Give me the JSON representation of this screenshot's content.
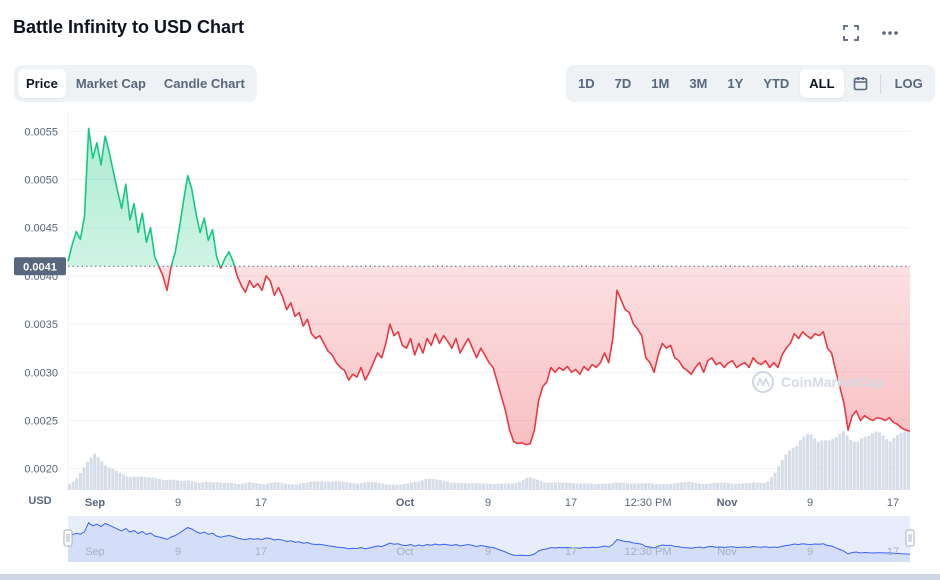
{
  "header": {
    "title": "Battle Infinity to USD Chart",
    "fullscreen_icon": "fullscreen-icon",
    "more_icon": "more-dots-icon"
  },
  "tabs_left": [
    {
      "label": "Price",
      "active": true
    },
    {
      "label": "Market Cap",
      "active": false
    },
    {
      "label": "Candle Chart",
      "active": false
    }
  ],
  "tabs_right": [
    {
      "label": "1D",
      "active": false
    },
    {
      "label": "7D",
      "active": false
    },
    {
      "label": "1M",
      "active": false
    },
    {
      "label": "3M",
      "active": false
    },
    {
      "label": "1Y",
      "active": false
    },
    {
      "label": "YTD",
      "active": false
    },
    {
      "label": "ALL",
      "active": true
    }
  ],
  "calendar_icon": "calendar-icon",
  "log_label": "LOG",
  "colors": {
    "up": "#16c784",
    "down": "#ea3943",
    "navigator_line": "#3861fb",
    "text_muted": "#58667e",
    "badge_bg": "#58667e"
  },
  "chart_data": {
    "type": "line",
    "unit_label": "USD",
    "ylim": [
      0.0018,
      0.0057
    ],
    "yticks": [
      "0.0055",
      "0.0050",
      "0.0045",
      "0.0040",
      "0.0035",
      "0.0030",
      "0.0025",
      "0.0020"
    ],
    "ytick_values": [
      0.0055,
      0.005,
      0.0045,
      0.004,
      0.0035,
      0.003,
      0.0025,
      0.002
    ],
    "reference_value": 0.0041,
    "reference_label": "0.0041",
    "xticks": [
      "Sep",
      "9",
      "17",
      "Oct",
      "9",
      "17",
      "12:30 PM",
      "Nov",
      "9",
      "17"
    ],
    "bold_xticks": [
      "Sep",
      "Oct",
      "Nov"
    ],
    "watermark": "CoinMarketCap",
    "series": [
      {
        "values": [
          0.00415,
          0.00432,
          0.00446,
          0.00438,
          0.00462,
          0.00553,
          0.00522,
          0.00538,
          0.00515,
          0.00545,
          0.00528,
          0.00508,
          0.00488,
          0.0047,
          0.00495,
          0.00458,
          0.00475,
          0.00445,
          0.00465,
          0.00435,
          0.0045,
          0.0042,
          0.0041,
          0.004,
          0.00385,
          0.0041,
          0.00425,
          0.0045,
          0.00478,
          0.00504,
          0.0049,
          0.00465,
          0.00445,
          0.0046,
          0.00437,
          0.00448,
          0.0042,
          0.00408,
          0.00418,
          0.00425,
          0.00415,
          0.004,
          0.0039,
          0.00383,
          0.00395,
          0.00388,
          0.00392,
          0.00385,
          0.004,
          0.00395,
          0.0038,
          0.00388,
          0.00378,
          0.00365,
          0.00372,
          0.00358,
          0.00362,
          0.00348,
          0.00355,
          0.0034,
          0.00335,
          0.00338,
          0.0033,
          0.00322,
          0.00318,
          0.0031,
          0.00305,
          0.00302,
          0.00292,
          0.00298,
          0.00295,
          0.00305,
          0.00292,
          0.003,
          0.0031,
          0.0032,
          0.00315,
          0.0033,
          0.0035,
          0.00338,
          0.00342,
          0.00328,
          0.00325,
          0.00335,
          0.00318,
          0.0033,
          0.0032,
          0.00335,
          0.00328,
          0.0034,
          0.0033,
          0.00338,
          0.00332,
          0.00325,
          0.00335,
          0.0032,
          0.00328,
          0.00335,
          0.00325,
          0.00315,
          0.00325,
          0.00318,
          0.0031,
          0.00305,
          0.0029,
          0.00275,
          0.0026,
          0.0024,
          0.00228,
          0.00226,
          0.00227,
          0.00225,
          0.00226,
          0.0024,
          0.0027,
          0.00285,
          0.0029,
          0.00305,
          0.003,
          0.00305,
          0.00302,
          0.00306,
          0.003,
          0.00303,
          0.00298,
          0.00306,
          0.00302,
          0.00308,
          0.00305,
          0.0031,
          0.0032,
          0.0031,
          0.00335,
          0.00385,
          0.00375,
          0.00365,
          0.00362,
          0.0035,
          0.00345,
          0.00338,
          0.00315,
          0.0031,
          0.003,
          0.00318,
          0.0033,
          0.00325,
          0.00328,
          0.00315,
          0.00312,
          0.00305,
          0.00302,
          0.00298,
          0.00305,
          0.0031,
          0.003,
          0.00312,
          0.00315,
          0.00308,
          0.0031,
          0.00305,
          0.0031,
          0.00312,
          0.00305,
          0.00308,
          0.0031,
          0.00305,
          0.00315,
          0.0031,
          0.00308,
          0.00312,
          0.00305,
          0.0031,
          0.00305,
          0.00318,
          0.00325,
          0.0033,
          0.0034,
          0.00335,
          0.00342,
          0.00338,
          0.00335,
          0.0034,
          0.00338,
          0.00342,
          0.00325,
          0.0032,
          0.00302,
          0.00285,
          0.00268,
          0.0024,
          0.00255,
          0.0026,
          0.0025,
          0.00255,
          0.00252,
          0.0025,
          0.00253,
          0.00252,
          0.0025,
          0.00253,
          0.00248,
          0.00246,
          0.00242,
          0.0024,
          0.00239
        ]
      }
    ],
    "volume_profile": [
      0.1,
      0.25,
      0.45,
      0.62,
      0.5,
      0.38,
      0.28,
      0.22,
      0.26,
      0.22,
      0.2,
      0.18,
      0.2,
      0.15,
      0.16,
      0.14,
      0.15,
      0.13,
      0.12,
      0.14,
      0.1,
      0.13,
      0.12,
      0.11,
      0.13,
      0.12,
      0.1,
      0.11,
      0.13,
      0.15,
      0.16,
      0.15,
      0.14,
      0.13,
      0.12,
      0.14,
      0.13,
      0.11,
      0.1,
      0.09,
      0.12,
      0.16,
      0.2,
      0.18,
      0.16,
      0.14,
      0.12,
      0.11,
      0.13,
      0.12,
      0.1,
      0.11,
      0.12,
      0.15,
      0.22,
      0.18,
      0.14,
      0.13,
      0.12,
      0.13,
      0.12,
      0.11,
      0.1,
      0.12,
      0.13,
      0.12,
      0.11,
      0.13,
      0.12,
      0.1,
      0.11,
      0.12,
      0.13,
      0.14,
      0.12,
      0.11,
      0.12,
      0.13,
      0.12,
      0.11,
      0.12,
      0.13,
      0.14,
      0.3,
      0.55,
      0.78,
      0.92,
      0.95,
      0.82,
      0.96,
      0.9,
      0.98,
      0.85,
      0.97,
      0.92,
      0.99,
      0.94,
      0.96,
      0.97,
      1.0
    ],
    "navigator": {
      "xticks": [
        "Sep",
        "9",
        "17",
        "Oct",
        "9",
        "17",
        "12:30 PM",
        "Nov",
        "9",
        "17"
      ]
    }
  }
}
